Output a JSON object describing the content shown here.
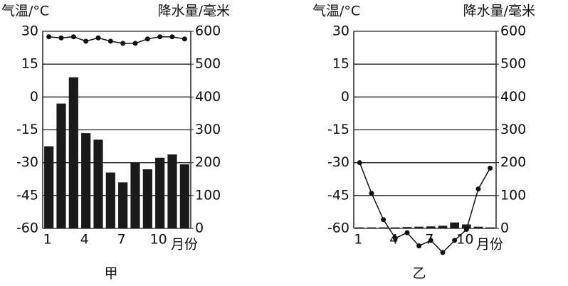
{
  "chart_data": [
    {
      "type": "combo",
      "caption": "甲",
      "y_label": "气温/°C",
      "y2_label": "降水量/毫米",
      "x_label": "月份",
      "categories": [
        "1",
        null,
        null,
        "4",
        null,
        null,
        "7",
        null,
        null,
        "10",
        null,
        null
      ],
      "ylim": [
        -60,
        30
      ],
      "yticks": [
        30,
        15,
        0,
        -15,
        -30,
        -45,
        -60
      ],
      "y2lim": [
        0,
        600
      ],
      "y2ticks": [
        600,
        500,
        400,
        300,
        200,
        100,
        0
      ],
      "grid": true,
      "series": [
        {
          "type": "line",
          "color": "#111111",
          "values": [
            27.5,
            27,
            27.5,
            25.5,
            27,
            25.5,
            24.5,
            24.5,
            26.5,
            27.5,
            27.5,
            26.5
          ]
        },
        {
          "type": "bar",
          "axis": "y2",
          "color": "#1a1a1a",
          "values": [
            250,
            380,
            460,
            290,
            270,
            170,
            140,
            200,
            180,
            215,
            225,
            195
          ]
        }
      ]
    },
    {
      "type": "combo",
      "caption": "乙",
      "y_label": "气温/°C",
      "y2_label": "降水量/毫米",
      "x_label": "月份",
      "categories": [
        "1",
        null,
        null,
        "4",
        null,
        null,
        "7",
        null,
        null,
        "10",
        null,
        null
      ],
      "ylim": [
        -60,
        30
      ],
      "yticks": [
        30,
        15,
        0,
        -15,
        -30,
        -45,
        -60
      ],
      "y2lim": [
        0,
        600
      ],
      "y2ticks": [
        600,
        500,
        400,
        300,
        200,
        100,
        0
      ],
      "grid": true,
      "series": [
        {
          "type": "line",
          "color": "#111111",
          "values": [
            -30,
            -44,
            -56,
            -64.5,
            -62,
            -68,
            -65.5,
            -71,
            -65.5,
            -60.5,
            -42,
            -32.5
          ]
        },
        {
          "type": "bar",
          "axis": "y2",
          "color": "#1a1a1a",
          "values": [
            3,
            3,
            3,
            3,
            4,
            5,
            6,
            8,
            18,
            12,
            5,
            3
          ]
        }
      ]
    }
  ]
}
